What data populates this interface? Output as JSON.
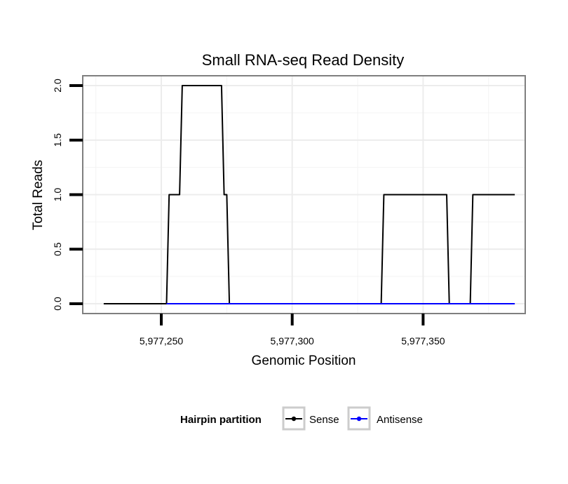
{
  "chart_data": {
    "type": "line",
    "title": "Small RNA-seq Read Density",
    "xlabel": "Genomic Position",
    "ylabel": "Total Reads",
    "xlim": [
      5977220,
      5977389
    ],
    "ylim": [
      -0.09,
      2.09
    ],
    "x_ticks": [
      {
        "value": 5977250,
        "label": "5,977,250"
      },
      {
        "value": 5977300,
        "label": "5,977,300"
      },
      {
        "value": 5977350,
        "label": "5,977,350"
      }
    ],
    "y_ticks": [
      {
        "value": 0.0,
        "label": "0.0"
      },
      {
        "value": 0.5,
        "label": "0.5"
      },
      {
        "value": 1.0,
        "label": "1.0"
      },
      {
        "value": 1.5,
        "label": "1.5"
      },
      {
        "value": 2.0,
        "label": "2.0"
      }
    ],
    "grid": true,
    "legend": {
      "title": "Hairpin partition",
      "position": "bottom"
    },
    "series": [
      {
        "name": "Sense",
        "color": "#000000",
        "x": [
          5977228,
          5977252,
          5977253,
          5977257,
          5977258,
          5977273,
          5977274,
          5977275,
          5977276,
          5977334,
          5977335,
          5977359,
          5977360,
          5977368,
          5977369,
          5977385
        ],
        "y": [
          0,
          0,
          1,
          1,
          2,
          2,
          1,
          1,
          0,
          0,
          1,
          1,
          0,
          0,
          1,
          1
        ]
      },
      {
        "name": "Antisense",
        "color": "#0000ff",
        "x": [
          5977252,
          5977385
        ],
        "y": [
          0,
          0
        ]
      }
    ]
  }
}
